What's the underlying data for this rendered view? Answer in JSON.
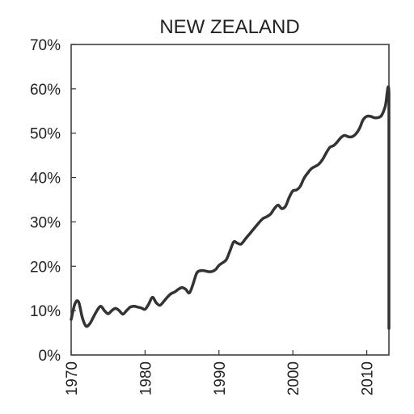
{
  "chart_data": {
    "type": "line",
    "title": "NEW ZEALAND",
    "xlabel": "",
    "ylabel": "",
    "xlim": [
      1970,
      2013
    ],
    "ylim": [
      0,
      0.7
    ],
    "grid": false,
    "line_color": "#333333",
    "x_ticks": [
      1970,
      1980,
      1990,
      2000,
      2010
    ],
    "x_tick_labels": [
      "1970",
      "1980",
      "1990",
      "2000",
      "2010"
    ],
    "y_ticks": [
      0,
      0.1,
      0.2,
      0.3,
      0.4,
      0.5,
      0.6,
      0.7
    ],
    "y_tick_labels": [
      "0%",
      "10%",
      "20%",
      "30%",
      "40%",
      "50%",
      "60%",
      "70%"
    ],
    "series": [
      {
        "x": [
          1970,
          1970.5,
          1971,
          1971.5,
          1972,
          1972.5,
          1973,
          1973.5,
          1974,
          1974.5,
          1975,
          1975.5,
          1976,
          1976.5,
          1977,
          1977.5,
          1978,
          1978.5,
          1979,
          1979.5,
          1980,
          1980.5,
          1981,
          1981.5,
          1982,
          1982.5,
          1983,
          1983.5,
          1984,
          1984.5,
          1985,
          1985.5,
          1986,
          1986.5,
          1987,
          1987.5,
          1988,
          1988.5,
          1989,
          1989.5,
          1990,
          1990.5,
          1991,
          1991.5,
          1992,
          1992.5,
          1993,
          1993.5,
          1994,
          1994.5,
          1995,
          1995.5,
          1996,
          1996.5,
          1997,
          1997.5,
          1998,
          1998.5,
          1999,
          1999.5,
          2000,
          2000.5,
          2001,
          2001.5,
          2002,
          2002.5,
          2003,
          2003.5,
          2004,
          2004.5,
          2005,
          2005.5,
          2006,
          2006.5,
          2007,
          2007.5,
          2008,
          2008.5,
          2009,
          2009.5,
          2010,
          2010.5,
          2011,
          2011.5,
          2012,
          2012.5,
          2013,
          2013,
          2013
        ],
        "values": [
          0.08,
          0.115,
          0.12,
          0.085,
          0.065,
          0.07,
          0.085,
          0.1,
          0.11,
          0.1,
          0.093,
          0.1,
          0.105,
          0.1,
          0.092,
          0.1,
          0.108,
          0.11,
          0.108,
          0.106,
          0.103,
          0.115,
          0.13,
          0.118,
          0.112,
          0.12,
          0.13,
          0.138,
          0.142,
          0.148,
          0.152,
          0.148,
          0.14,
          0.16,
          0.185,
          0.19,
          0.19,
          0.188,
          0.188,
          0.192,
          0.202,
          0.208,
          0.215,
          0.235,
          0.255,
          0.252,
          0.25,
          0.26,
          0.27,
          0.28,
          0.29,
          0.3,
          0.308,
          0.312,
          0.318,
          0.33,
          0.338,
          0.33,
          0.335,
          0.355,
          0.37,
          0.372,
          0.38,
          0.398,
          0.41,
          0.42,
          0.425,
          0.43,
          0.44,
          0.455,
          0.468,
          0.472,
          0.48,
          0.49,
          0.495,
          0.492,
          0.492,
          0.498,
          0.51,
          0.53,
          0.538,
          0.538,
          0.535,
          0.535,
          0.54,
          0.56,
          0.59,
          0.3,
          0.06
        ]
      }
    ]
  }
}
